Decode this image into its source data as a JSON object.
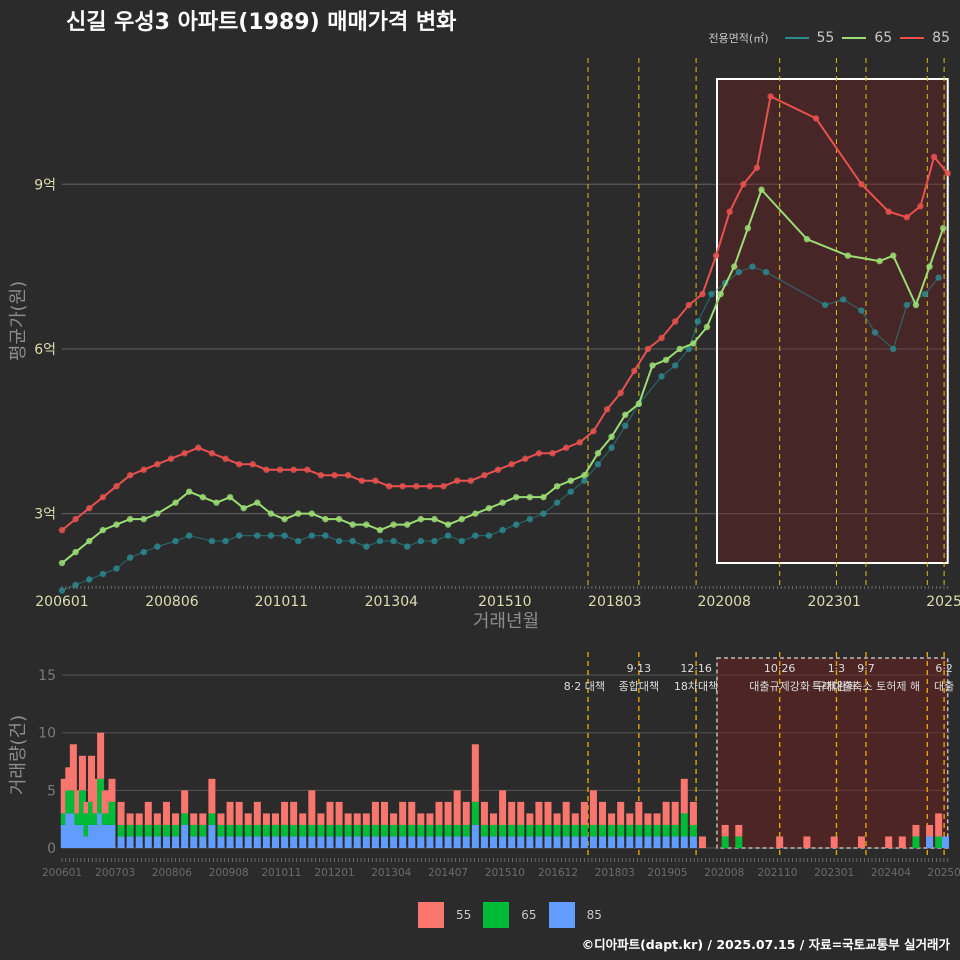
{
  "title": "신길 우성3 아파트(1989) 매매가격 변화",
  "footer": "©디아파트(dapt.kr) / 2025.07.15 / 자료=국토교통부 실거래가",
  "legend": {
    "title": "전용면적(㎡)",
    "line_items": [
      {
        "label": "55",
        "color": "#2a8a8f"
      },
      {
        "label": "65",
        "color": "#9bdc74"
      },
      {
        "label": "85",
        "color": "#e8514f"
      }
    ],
    "bar_items": [
      {
        "label": "55",
        "color": "#f8766d"
      },
      {
        "label": "65",
        "color": "#00ba38"
      },
      {
        "label": "85",
        "color": "#619cff"
      }
    ]
  },
  "chart_data": [
    {
      "type": "line",
      "title": "신길 우성3 아파트(1989) 매매가격 변화",
      "xlabel": "거래년월",
      "ylabel": "평균가(원)",
      "x_range": [
        2006.0,
        2025.55
      ],
      "ylim": [
        1.7,
        11.3
      ],
      "y_ticks": [
        {
          "value": 3,
          "label": "3억"
        },
        {
          "value": 6,
          "label": "6억"
        },
        {
          "value": 9,
          "label": "9억"
        }
      ],
      "x_ticks": [
        {
          "value": 2006.0,
          "label": "200601"
        },
        {
          "value": 2008.42,
          "label": "200806"
        },
        {
          "value": 2010.83,
          "label": "201011"
        },
        {
          "value": 2013.25,
          "label": "201304"
        },
        {
          "value": 2015.75,
          "label": "201510"
        },
        {
          "value": 2018.17,
          "label": "201803"
        },
        {
          "value": 2020.58,
          "label": "202008"
        },
        {
          "value": 2023.0,
          "label": "202301"
        },
        {
          "value": 2025.42,
          "label": "2025"
        }
      ],
      "highlight_range": [
        2020.42,
        2025.5
      ],
      "event_lines": [
        2017.58,
        2018.7,
        2019.96,
        2021.8,
        2023.05,
        2023.7,
        2025.05,
        2025.42
      ],
      "series": [
        {
          "name": "55",
          "x": [
            2006.0,
            2006.3,
            2006.6,
            2006.9,
            2007.2,
            2007.5,
            2007.8,
            2008.1,
            2008.5,
            2008.8,
            2009.3,
            2009.6,
            2009.9,
            2010.3,
            2010.6,
            2010.9,
            2011.2,
            2011.5,
            2011.8,
            2012.1,
            2012.4,
            2012.7,
            2013.0,
            2013.3,
            2013.6,
            2013.9,
            2014.2,
            2014.5,
            2014.8,
            2015.1,
            2015.4,
            2015.7,
            2016.0,
            2016.3,
            2016.6,
            2016.9,
            2017.2,
            2017.5,
            2017.8,
            2018.1,
            2018.4,
            2018.7,
            2019.2,
            2019.5,
            2019.8,
            2020.0,
            2020.3,
            2020.6,
            2020.9,
            2021.2,
            2021.5,
            2022.8,
            2023.2,
            2023.6,
            2023.9,
            2024.3,
            2024.6,
            2025.0,
            2025.3
          ],
          "values": [
            1.6,
            1.7,
            1.8,
            1.9,
            2.0,
            2.2,
            2.3,
            2.4,
            2.5,
            2.6,
            2.5,
            2.5,
            2.6,
            2.6,
            2.6,
            2.6,
            2.5,
            2.6,
            2.6,
            2.5,
            2.5,
            2.4,
            2.5,
            2.5,
            2.4,
            2.5,
            2.5,
            2.6,
            2.5,
            2.6,
            2.6,
            2.7,
            2.8,
            2.9,
            3.0,
            3.2,
            3.4,
            3.6,
            3.9,
            4.2,
            4.6,
            5.0,
            5.5,
            5.7,
            6.0,
            6.5,
            7.0,
            7.2,
            7.4,
            7.5,
            7.4,
            6.8,
            6.9,
            6.7,
            6.3,
            6.0,
            6.8,
            7.0,
            7.3
          ]
        },
        {
          "name": "65",
          "x": [
            2006.0,
            2006.3,
            2006.6,
            2006.9,
            2007.2,
            2007.5,
            2007.8,
            2008.1,
            2008.5,
            2008.8,
            2009.1,
            2009.4,
            2009.7,
            2010.0,
            2010.3,
            2010.6,
            2010.9,
            2011.2,
            2011.5,
            2011.8,
            2012.1,
            2012.4,
            2012.7,
            2013.0,
            2013.3,
            2013.6,
            2013.9,
            2014.2,
            2014.5,
            2014.8,
            2015.1,
            2015.4,
            2015.7,
            2016.0,
            2016.3,
            2016.6,
            2016.9,
            2017.2,
            2017.5,
            2017.8,
            2018.1,
            2018.4,
            2018.7,
            2019.0,
            2019.3,
            2019.6,
            2019.9,
            2020.2,
            2020.5,
            2020.8,
            2021.1,
            2021.4,
            2022.4,
            2023.3,
            2024.0,
            2024.3,
            2024.8,
            2025.1,
            2025.4
          ],
          "values": [
            2.1,
            2.3,
            2.5,
            2.7,
            2.8,
            2.9,
            2.9,
            3.0,
            3.2,
            3.4,
            3.3,
            3.2,
            3.3,
            3.1,
            3.2,
            3.0,
            2.9,
            3.0,
            3.0,
            2.9,
            2.9,
            2.8,
            2.8,
            2.7,
            2.8,
            2.8,
            2.9,
            2.9,
            2.8,
            2.9,
            3.0,
            3.1,
            3.2,
            3.3,
            3.3,
            3.3,
            3.5,
            3.6,
            3.7,
            4.1,
            4.4,
            4.8,
            5.0,
            5.7,
            5.8,
            6.0,
            6.1,
            6.4,
            7.0,
            7.5,
            8.2,
            8.9,
            8.0,
            7.7,
            7.6,
            7.7,
            6.8,
            7.5,
            8.2
          ]
        },
        {
          "name": "85",
          "x": [
            2006.0,
            2006.3,
            2006.6,
            2006.9,
            2007.2,
            2007.5,
            2007.8,
            2008.1,
            2008.4,
            2008.7,
            2009.0,
            2009.3,
            2009.6,
            2009.9,
            2010.2,
            2010.5,
            2010.8,
            2011.1,
            2011.4,
            2011.7,
            2012.0,
            2012.3,
            2012.6,
            2012.9,
            2013.2,
            2013.5,
            2013.8,
            2014.1,
            2014.4,
            2014.7,
            2015.0,
            2015.3,
            2015.6,
            2015.9,
            2016.2,
            2016.5,
            2016.8,
            2017.1,
            2017.4,
            2017.7,
            2018.0,
            2018.3,
            2018.6,
            2018.9,
            2019.2,
            2019.5,
            2019.8,
            2020.1,
            2020.4,
            2020.7,
            2021.0,
            2021.3,
            2021.6,
            2022.6,
            2023.6,
            2024.2,
            2024.6,
            2024.9,
            2025.2,
            2025.5
          ],
          "values": [
            2.7,
            2.9,
            3.1,
            3.3,
            3.5,
            3.7,
            3.8,
            3.9,
            4.0,
            4.1,
            4.2,
            4.1,
            4.0,
            3.9,
            3.9,
            3.8,
            3.8,
            3.8,
            3.8,
            3.7,
            3.7,
            3.7,
            3.6,
            3.6,
            3.5,
            3.5,
            3.5,
            3.5,
            3.5,
            3.6,
            3.6,
            3.7,
            3.8,
            3.9,
            4.0,
            4.1,
            4.1,
            4.2,
            4.3,
            4.5,
            4.9,
            5.2,
            5.6,
            6.0,
            6.2,
            6.5,
            6.8,
            7.0,
            7.7,
            8.5,
            9.0,
            9.3,
            10.6,
            10.2,
            9.0,
            8.5,
            8.4,
            8.6,
            9.5,
            9.2
          ]
        }
      ]
    },
    {
      "type": "bar",
      "stacked": true,
      "ylabel": "거래량(건)",
      "ylim": [
        0,
        17
      ],
      "y_ticks": [
        0,
        5,
        10,
        15
      ],
      "x_range": [
        2006.0,
        2025.55
      ],
      "x_ticks": [
        {
          "value": 2006.0,
          "label": "200601"
        },
        {
          "value": 2007.17,
          "label": "200703"
        },
        {
          "value": 2008.42,
          "label": "200806"
        },
        {
          "value": 2009.67,
          "label": "200908"
        },
        {
          "value": 2010.83,
          "label": "201011"
        },
        {
          "value": 2012.0,
          "label": "201201"
        },
        {
          "value": 2013.25,
          "label": "201304"
        },
        {
          "value": 2014.5,
          "label": "201407"
        },
        {
          "value": 2015.75,
          "label": "201510"
        },
        {
          "value": 2016.92,
          "label": "201612"
        },
        {
          "value": 2018.17,
          "label": "201803"
        },
        {
          "value": 2019.33,
          "label": "201905"
        },
        {
          "value": 2020.58,
          "label": "202008"
        },
        {
          "value": 2021.75,
          "label": "202110"
        },
        {
          "value": 2023.0,
          "label": "202301"
        },
        {
          "value": 2024.25,
          "label": "202404"
        },
        {
          "value": 2025.42,
          "label": "20250"
        }
      ],
      "highlight_range": [
        2020.42,
        2025.5
      ],
      "event_lines": [
        2017.58,
        2018.7,
        2019.96,
        2021.8,
        2023.05,
        2023.7,
        2025.05,
        2025.42
      ],
      "annotations": [
        {
          "x": 2017.5,
          "line1": "",
          "line2": "8·2 대책"
        },
        {
          "x": 2018.7,
          "line1": "9·13",
          "line2": "종합대책"
        },
        {
          "x": 2019.96,
          "line1": "12·16",
          "line2": "18차대책"
        },
        {
          "x": 2021.8,
          "line1": "10·26",
          "line2": "대출규제강화"
        },
        {
          "x": 2023.05,
          "line1": "1·3",
          "line2": "규제완화"
        },
        {
          "x": 2023.7,
          "line1": "9·7",
          "line2": "특례대출축소 토허제 해"
        },
        {
          "x": 2025.42,
          "line1": "6·2",
          "line2": "대출"
        }
      ],
      "x": [
        2006.05,
        2006.15,
        2006.25,
        2006.35,
        2006.45,
        2006.55,
        2006.65,
        2006.75,
        2006.85,
        2006.95,
        2007.1,
        2007.3,
        2007.5,
        2007.7,
        2007.9,
        2008.1,
        2008.3,
        2008.5,
        2008.7,
        2008.9,
        2009.1,
        2009.3,
        2009.5,
        2009.7,
        2009.9,
        2010.1,
        2010.3,
        2010.5,
        2010.7,
        2010.9,
        2011.1,
        2011.3,
        2011.5,
        2011.7,
        2011.9,
        2012.1,
        2012.3,
        2012.5,
        2012.7,
        2012.9,
        2013.1,
        2013.3,
        2013.5,
        2013.7,
        2013.9,
        2014.1,
        2014.3,
        2014.5,
        2014.7,
        2014.9,
        2015.1,
        2015.3,
        2015.5,
        2015.7,
        2015.9,
        2016.1,
        2016.3,
        2016.5,
        2016.7,
        2016.9,
        2017.1,
        2017.3,
        2017.5,
        2017.7,
        2017.9,
        2018.1,
        2018.3,
        2018.5,
        2018.7,
        2018.9,
        2019.1,
        2019.3,
        2019.5,
        2019.7,
        2019.9,
        2020.1,
        2020.3,
        2020.6,
        2020.9,
        2021.2,
        2021.5,
        2021.8,
        2022.1,
        2022.4,
        2022.7,
        2023.0,
        2023.3,
        2023.6,
        2023.9,
        2024.2,
        2024.5,
        2024.8,
        2025.1,
        2025.3,
        2025.45
      ],
      "series": [
        {
          "name": "55",
          "values": [
            3,
            2,
            4,
            2,
            3,
            1,
            4,
            3,
            4,
            2,
            2,
            2,
            1,
            1,
            2,
            1,
            2,
            1,
            2,
            1,
            1,
            3,
            1,
            2,
            2,
            1,
            2,
            1,
            1,
            2,
            2,
            1,
            3,
            1,
            2,
            2,
            1,
            1,
            1,
            2,
            2,
            1,
            2,
            2,
            1,
            1,
            2,
            2,
            3,
            2,
            5,
            2,
            1,
            3,
            2,
            2,
            1,
            2,
            2,
            1,
            2,
            1,
            2,
            3,
            2,
            1,
            2,
            1,
            2,
            1,
            1,
            2,
            2,
            3,
            2,
            1,
            0,
            1,
            1,
            0,
            0,
            1,
            0,
            1,
            0,
            1,
            0,
            1,
            0,
            1,
            1,
            1,
            1,
            2,
            0
          ]
        },
        {
          "name": "65",
          "values": [
            1,
            2,
            2,
            1,
            3,
            2,
            2,
            1,
            3,
            1,
            2,
            1,
            1,
            1,
            1,
            1,
            1,
            1,
            1,
            1,
            1,
            1,
            1,
            1,
            1,
            1,
            1,
            1,
            1,
            1,
            1,
            1,
            1,
            1,
            1,
            1,
            1,
            1,
            1,
            1,
            1,
            1,
            1,
            1,
            1,
            1,
            1,
            1,
            1,
            1,
            2,
            1,
            1,
            1,
            1,
            1,
            1,
            1,
            1,
            1,
            1,
            1,
            1,
            1,
            1,
            1,
            1,
            1,
            1,
            1,
            1,
            1,
            1,
            2,
            1,
            0,
            0,
            1,
            1,
            0,
            0,
            0,
            0,
            0,
            0,
            0,
            0,
            0,
            0,
            0,
            0,
            1,
            0,
            1,
            0
          ]
        },
        {
          "name": "85",
          "values": [
            2,
            3,
            3,
            2,
            2,
            1,
            2,
            2,
            3,
            2,
            2,
            1,
            1,
            1,
            1,
            1,
            1,
            1,
            2,
            1,
            1,
            2,
            1,
            1,
            1,
            1,
            1,
            1,
            1,
            1,
            1,
            1,
            1,
            1,
            1,
            1,
            1,
            1,
            1,
            1,
            1,
            1,
            1,
            1,
            1,
            1,
            1,
            1,
            1,
            1,
            2,
            1,
            1,
            1,
            1,
            1,
            1,
            1,
            1,
            1,
            1,
            1,
            1,
            1,
            1,
            1,
            1,
            1,
            1,
            1,
            1,
            1,
            1,
            1,
            1,
            0,
            0,
            0,
            0,
            0,
            0,
            0,
            0,
            0,
            0,
            0,
            0,
            0,
            0,
            0,
            0,
            0,
            1,
            0,
            1
          ]
        }
      ]
    }
  ]
}
